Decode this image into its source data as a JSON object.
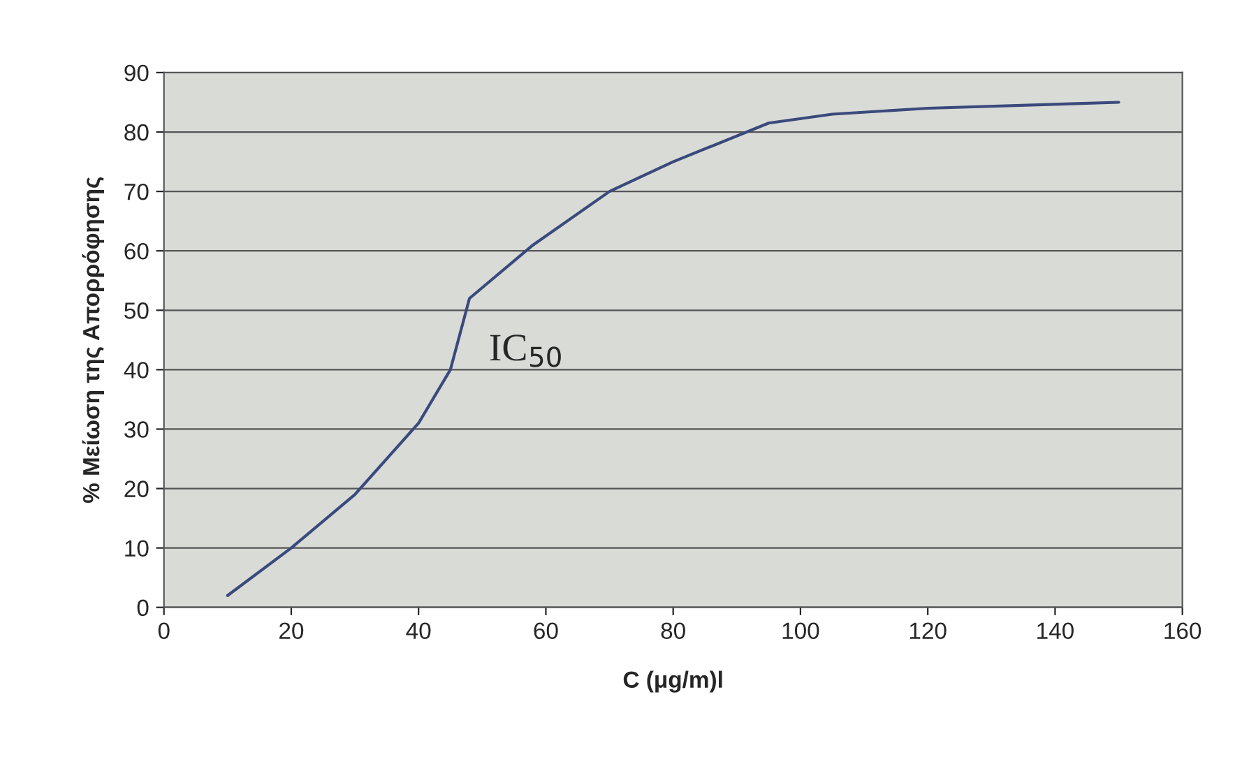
{
  "chart_data": {
    "type": "line",
    "xlabel": "C (μg/m)l",
    "ylabel": "% Μείωση της Απορρόφησης",
    "x": [
      10,
      20,
      30,
      40,
      45,
      48,
      58,
      70,
      80,
      95,
      105,
      120,
      150
    ],
    "series": [
      {
        "color": "#3b4a7c",
        "values": [
          2,
          10,
          19,
          31,
          40,
          52,
          61,
          70,
          75,
          81.5,
          83,
          84,
          85
        ]
      }
    ],
    "annotations": [
      {
        "text": "IC$_{50}$",
        "x": 48,
        "y": 50
      }
    ],
    "xlim": [
      0,
      160
    ],
    "xticks": [
      0,
      20,
      40,
      60,
      80,
      100,
      120,
      140,
      160
    ],
    "ylim": [
      0,
      90
    ],
    "yticks": [
      0,
      10,
      20,
      30,
      40,
      50,
      60,
      70,
      80,
      90
    ],
    "grid": "y",
    "legend": false,
    "marker": "none",
    "line_style": "solid"
  }
}
